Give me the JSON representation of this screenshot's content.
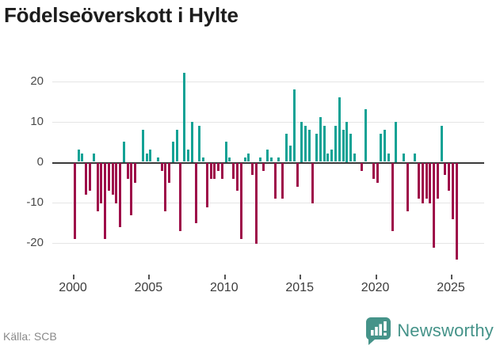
{
  "header": {
    "title": "Födelseöverskott i Hylte"
  },
  "footer": {
    "source_label": "Källa: SCB",
    "brand_name": "Newsworthy",
    "brand_icon": "newsworthy-bubble-barchart-icon"
  },
  "colors": {
    "positive_bar": "#13A295",
    "negative_bar": "#9E0D49",
    "gridline": "#E5E5E5",
    "zero_line": "#3A3A3A",
    "axis_text": "#4A4A4A",
    "brand_teal": "#459389",
    "title_text": "#1D1D1D",
    "source_text": "#8A8A8A"
  },
  "chart_data": {
    "type": "bar",
    "title": "Födelseöverskott i Hylte",
    "frequency": "quarterly",
    "start_year": 2000,
    "start_quarter": 1,
    "x_tick_labels": [
      "2000",
      "2005",
      "2010",
      "2015",
      "2020",
      "2025"
    ],
    "y_tick_labels": [
      "20",
      "10",
      "0",
      "-10",
      "-20"
    ],
    "y_tick_values": [
      20,
      10,
      0,
      -10,
      -20
    ],
    "ylim": [
      -26,
      23.5
    ],
    "grid": true,
    "legend": "none",
    "positive_color": "#13A295",
    "negative_color": "#9E0D49",
    "values": [
      -19,
      3,
      2,
      -8,
      -7,
      2,
      -12,
      -10,
      -19,
      -7,
      -8,
      -10,
      -16,
      5,
      -4,
      -13,
      -5,
      0,
      8,
      2,
      3,
      0,
      1,
      -2,
      -12,
      -5,
      5,
      8,
      -17,
      22,
      3,
      10,
      -15,
      9,
      1,
      -11,
      -4,
      -4,
      -2,
      -4,
      5,
      1,
      -4,
      -7,
      -19,
      1,
      2,
      -3,
      -20,
      1,
      -2,
      3,
      1,
      -9,
      1,
      -9,
      7,
      4,
      18,
      -6,
      10,
      9,
      8,
      -10,
      7,
      11,
      9,
      2,
      3,
      9,
      16,
      8,
      10,
      7,
      2,
      0,
      -2,
      13,
      0,
      -4,
      -5,
      7,
      8,
      2,
      -17,
      10,
      0,
      2,
      -12,
      0,
      2,
      -9,
      -10,
      -9,
      -10,
      -21,
      -9,
      9,
      -3,
      -7,
      -14,
      -24
    ]
  }
}
